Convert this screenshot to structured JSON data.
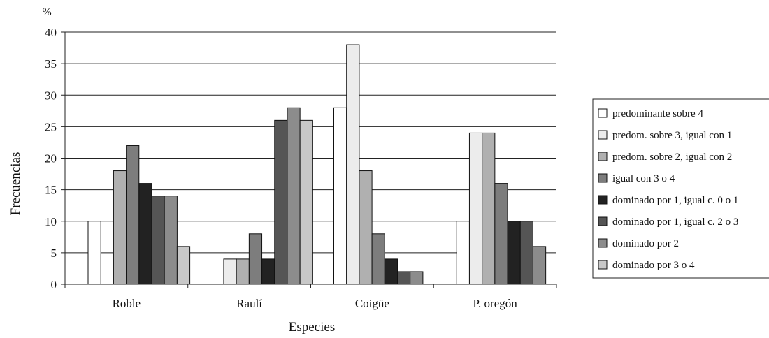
{
  "chart_data": {
    "type": "bar",
    "title": "",
    "xlabel": "Especies",
    "ylabel": "Frecuencias",
    "y_unit": "%",
    "ylim": [
      0,
      40
    ],
    "yticks": [
      0,
      5,
      10,
      15,
      20,
      25,
      30,
      35,
      40
    ],
    "grid": "horizontal",
    "legend_position": "right",
    "categories": [
      "Roble",
      "Raulí",
      "Coigüe",
      "P. oregón"
    ],
    "series": [
      {
        "name": "predominante sobre 4",
        "color": "#ffffff",
        "values": [
          10,
          0,
          28,
          10
        ]
      },
      {
        "name": "predom. sobre 3, igual con 1",
        "color": "#ececec",
        "values": [
          0,
          4,
          38,
          24
        ]
      },
      {
        "name": "predom. sobre 2, igual con 2",
        "color": "#b0b0b0",
        "values": [
          18,
          4,
          18,
          24
        ]
      },
      {
        "name": "igual con 3 o 4",
        "color": "#7d7d7d",
        "values": [
          22,
          8,
          8,
          16
        ]
      },
      {
        "name": "dominado por 1, igual c. 0 o 1",
        "color": "#222222",
        "values": [
          16,
          4,
          4,
          10
        ]
      },
      {
        "name": "dominado por 1, igual c. 2 o 3",
        "color": "#555555",
        "values": [
          14,
          26,
          2,
          10
        ]
      },
      {
        "name": "dominado por 2",
        "color": "#8c8c8c",
        "values": [
          14,
          28,
          2,
          6
        ]
      },
      {
        "name": "dominado por 3 o 4",
        "color": "#c8c8c8",
        "values": [
          6,
          26,
          0,
          0
        ]
      }
    ]
  }
}
